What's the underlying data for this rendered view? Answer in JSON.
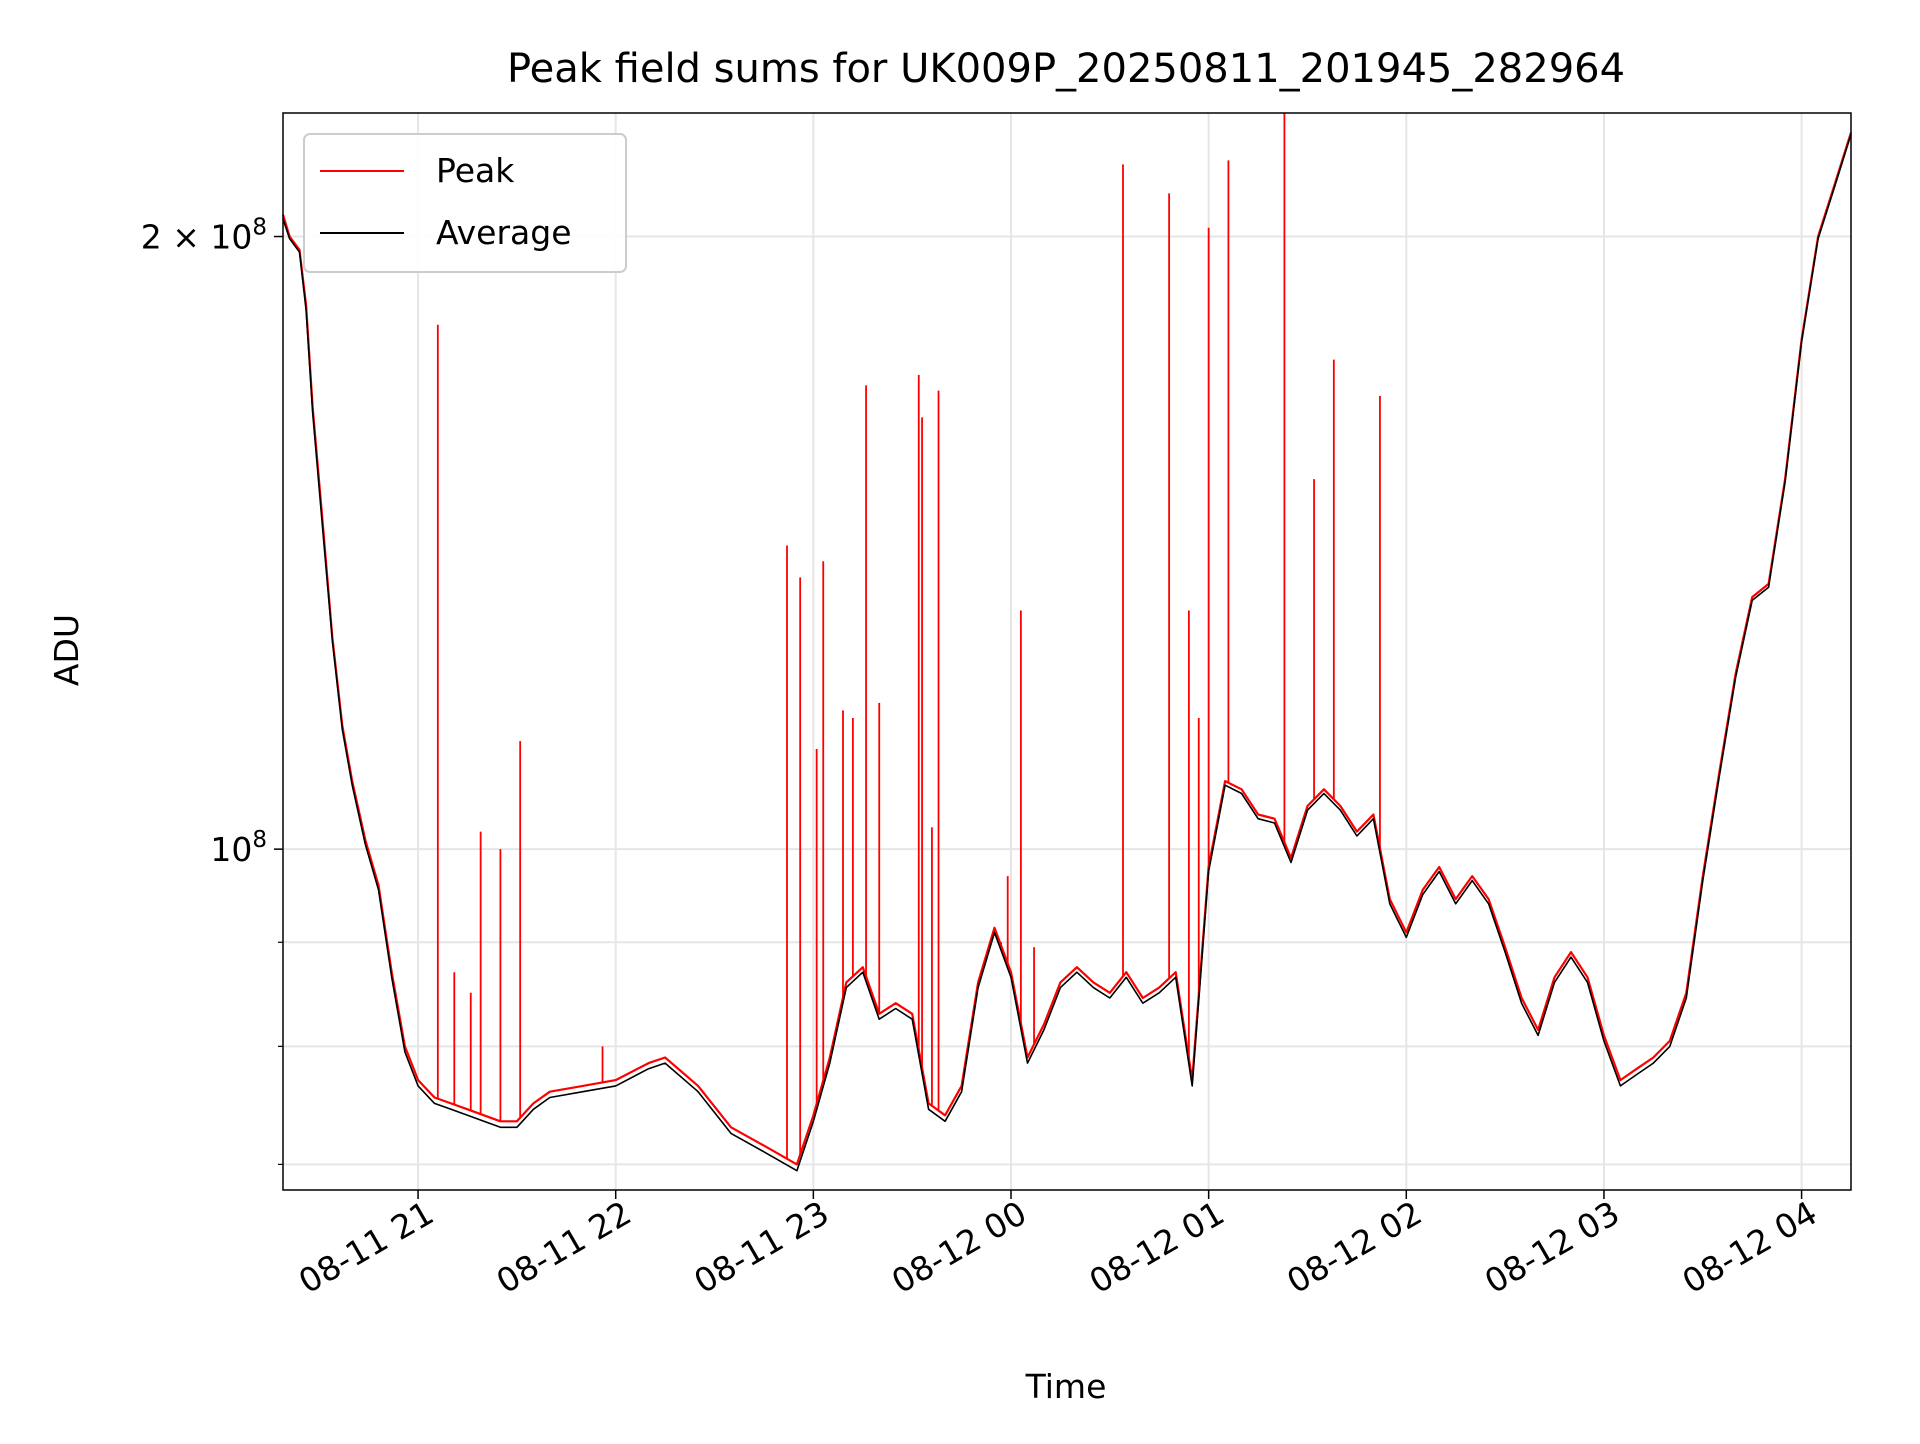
{
  "chart_data": {
    "type": "line",
    "title": "Peak field sums for UK009P_20250811_201945_282964",
    "xlabel": "Time",
    "ylabel": "ADU",
    "x_ticks": [
      "08-11 21",
      "08-11 22",
      "08-11 23",
      "08-12 00",
      "08-12 01",
      "08-12 02",
      "08-12 03",
      "08-12 04"
    ],
    "y_ticks": [
      {
        "value": 100000000,
        "label": "10^8"
      },
      {
        "value": 200000000,
        "label": "2 × 10^8"
      }
    ],
    "y_scale": "log",
    "xlim": [
      "2025-08-11 20:19",
      "2025-08-12 04:15"
    ],
    "ylim": [
      68000000,
      230000000
    ],
    "grid": true,
    "legend_position": "top-left",
    "series": [
      {
        "name": "Peak",
        "color": "#ff0000",
        "x": [
          "2025-08-11 20:19",
          "2025-08-11 20:21",
          "2025-08-11 20:24",
          "2025-08-11 20:26",
          "2025-08-11 20:28",
          "2025-08-11 20:31",
          "2025-08-11 20:34",
          "2025-08-11 20:37",
          "2025-08-11 20:40",
          "2025-08-11 20:44",
          "2025-08-11 20:48",
          "2025-08-11 20:52",
          "2025-08-11 20:56",
          "2025-08-11 21:00",
          "2025-08-11 21:05",
          "2025-08-11 21:10",
          "2025-08-11 21:15",
          "2025-08-11 21:20",
          "2025-08-11 21:25",
          "2025-08-11 21:30",
          "2025-08-11 21:35",
          "2025-08-11 21:40",
          "2025-08-11 21:50",
          "2025-08-11 22:00",
          "2025-08-11 22:10",
          "2025-08-11 22:15",
          "2025-08-11 22:25",
          "2025-08-11 22:35",
          "2025-08-11 22:45",
          "2025-08-11 22:55",
          "2025-08-11 23:00",
          "2025-08-11 23:05",
          "2025-08-11 23:10",
          "2025-08-11 23:15",
          "2025-08-11 23:20",
          "2025-08-11 23:25",
          "2025-08-11 23:30",
          "2025-08-11 23:35",
          "2025-08-11 23:40",
          "2025-08-11 23:45",
          "2025-08-11 23:50",
          "2025-08-11 23:55",
          "2025-08-12 00:00",
          "2025-08-12 00:05",
          "2025-08-12 00:10",
          "2025-08-12 00:15",
          "2025-08-12 00:20",
          "2025-08-12 00:25",
          "2025-08-12 00:30",
          "2025-08-12 00:35",
          "2025-08-12 00:40",
          "2025-08-12 00:45",
          "2025-08-12 00:50",
          "2025-08-12 00:55",
          "2025-08-12 01:00",
          "2025-08-12 01:05",
          "2025-08-12 01:10",
          "2025-08-12 01:15",
          "2025-08-12 01:20",
          "2025-08-12 01:25",
          "2025-08-12 01:30",
          "2025-08-12 01:35",
          "2025-08-12 01:40",
          "2025-08-12 01:45",
          "2025-08-12 01:50",
          "2025-08-12 01:55",
          "2025-08-12 02:00",
          "2025-08-12 02:05",
          "2025-08-12 02:10",
          "2025-08-12 02:15",
          "2025-08-12 02:20",
          "2025-08-12 02:25",
          "2025-08-12 02:30",
          "2025-08-12 02:35",
          "2025-08-12 02:40",
          "2025-08-12 02:45",
          "2025-08-12 02:50",
          "2025-08-12 02:55",
          "2025-08-12 03:00",
          "2025-08-12 03:05",
          "2025-08-12 03:10",
          "2025-08-12 03:15",
          "2025-08-12 03:20",
          "2025-08-12 03:25",
          "2025-08-12 03:30",
          "2025-08-12 03:35",
          "2025-08-12 03:40",
          "2025-08-12 03:45",
          "2025-08-12 03:50",
          "2025-08-12 03:55",
          "2025-08-12 04:00",
          "2025-08-12 04:05",
          "2025-08-12 04:10",
          "2025-08-12 04:15"
        ],
        "y": [
          205000000,
          200000000,
          197000000,
          185000000,
          165000000,
          145000000,
          127000000,
          115000000,
          108000000,
          101000000,
          96000000,
          87000000,
          80000000,
          77000000,
          75500000,
          75000000,
          74500000,
          74000000,
          73500000,
          73500000,
          75000000,
          76000000,
          76500000,
          77000000,
          78500000,
          79000000,
          76500000,
          73000000,
          71500000,
          70000000,
          74000000,
          79000000,
          86000000,
          87500000,
          83000000,
          84000000,
          83000000,
          75000000,
          74000000,
          76500000,
          86000000,
          91500000,
          87000000,
          79000000,
          82000000,
          86000000,
          87500000,
          86000000,
          85000000,
          87000000,
          84500000,
          85500000,
          87000000,
          77000000,
          98000000,
          108000000,
          107000000,
          104000000,
          103500000,
          99000000,
          105000000,
          107000000,
          105000000,
          102000000,
          104000000,
          94500000,
          91000000,
          95500000,
          98000000,
          94500000,
          97000000,
          94500000,
          89500000,
          84500000,
          81500000,
          86500000,
          89000000,
          86500000,
          81000000,
          77000000,
          78000000,
          79000000,
          80500000,
          85000000,
          97000000,
          109000000,
          122000000,
          133000000,
          135000000,
          152000000,
          178000000,
          200000000,
          212000000,
          225000000
        ],
        "spikes": [
          {
            "x": "2025-08-11 21:06",
            "y": 181000000
          },
          {
            "x": "2025-08-11 21:11",
            "y": 87000000
          },
          {
            "x": "2025-08-11 21:16",
            "y": 85000000
          },
          {
            "x": "2025-08-11 21:19",
            "y": 102000000
          },
          {
            "x": "2025-08-11 21:25",
            "y": 100000000
          },
          {
            "x": "2025-08-11 21:31",
            "y": 113000000
          },
          {
            "x": "2025-08-11 21:56",
            "y": 80000000
          },
          {
            "x": "2025-08-11 22:52",
            "y": 141000000
          },
          {
            "x": "2025-08-11 22:56",
            "y": 136000000
          },
          {
            "x": "2025-08-11 23:01",
            "y": 112000000
          },
          {
            "x": "2025-08-11 23:03",
            "y": 138500000
          },
          {
            "x": "2025-08-11 23:09",
            "y": 117000000
          },
          {
            "x": "2025-08-11 23:12",
            "y": 116000000
          },
          {
            "x": "2025-08-11 23:16",
            "y": 169000000
          },
          {
            "x": "2025-08-11 23:20",
            "y": 118000000
          },
          {
            "x": "2025-08-11 23:32",
            "y": 171000000
          },
          {
            "x": "2025-08-11 23:33",
            "y": 163000000
          },
          {
            "x": "2025-08-11 23:36",
            "y": 102500000
          },
          {
            "x": "2025-08-11 23:38",
            "y": 168000000
          },
          {
            "x": "2025-08-11 23:57",
            "y": 90000000
          },
          {
            "x": "2025-08-11 23:59",
            "y": 97000000
          },
          {
            "x": "2025-08-12 00:03",
            "y": 131000000
          },
          {
            "x": "2025-08-12 00:07",
            "y": 89500000
          },
          {
            "x": "2025-08-12 00:34",
            "y": 217000000
          },
          {
            "x": "2025-08-12 00:48",
            "y": 210000000
          },
          {
            "x": "2025-08-12 00:54",
            "y": 131000000
          },
          {
            "x": "2025-08-12 00:57",
            "y": 116000000
          },
          {
            "x": "2025-08-12 01:00",
            "y": 202000000
          },
          {
            "x": "2025-08-12 01:06",
            "y": 218000000
          },
          {
            "x": "2025-08-12 01:23",
            "y": 230000000
          },
          {
            "x": "2025-08-12 01:32",
            "y": 152000000
          },
          {
            "x": "2025-08-12 01:38",
            "y": 174000000
          },
          {
            "x": "2025-08-12 01:52",
            "y": 167000000
          }
        ]
      },
      {
        "name": "Average",
        "color": "#000000",
        "x": [
          "2025-08-11 20:19",
          "2025-08-11 20:21",
          "2025-08-11 20:24",
          "2025-08-11 20:26",
          "2025-08-11 20:28",
          "2025-08-11 20:31",
          "2025-08-11 20:34",
          "2025-08-11 20:37",
          "2025-08-11 20:40",
          "2025-08-11 20:44",
          "2025-08-11 20:48",
          "2025-08-11 20:52",
          "2025-08-11 20:56",
          "2025-08-11 21:00",
          "2025-08-11 21:05",
          "2025-08-11 21:10",
          "2025-08-11 21:15",
          "2025-08-11 21:20",
          "2025-08-11 21:25",
          "2025-08-11 21:30",
          "2025-08-11 21:35",
          "2025-08-11 21:40",
          "2025-08-11 21:50",
          "2025-08-11 22:00",
          "2025-08-11 22:10",
          "2025-08-11 22:15",
          "2025-08-11 22:25",
          "2025-08-11 22:35",
          "2025-08-11 22:45",
          "2025-08-11 22:55",
          "2025-08-11 23:00",
          "2025-08-11 23:05",
          "2025-08-11 23:10",
          "2025-08-11 23:15",
          "2025-08-11 23:20",
          "2025-08-11 23:25",
          "2025-08-11 23:30",
          "2025-08-11 23:35",
          "2025-08-11 23:40",
          "2025-08-11 23:45",
          "2025-08-11 23:50",
          "2025-08-11 23:55",
          "2025-08-12 00:00",
          "2025-08-12 00:05",
          "2025-08-12 00:10",
          "2025-08-12 00:15",
          "2025-08-12 00:20",
          "2025-08-12 00:25",
          "2025-08-12 00:30",
          "2025-08-12 00:35",
          "2025-08-12 00:40",
          "2025-08-12 00:45",
          "2025-08-12 00:50",
          "2025-08-12 00:55",
          "2025-08-12 01:00",
          "2025-08-12 01:05",
          "2025-08-12 01:10",
          "2025-08-12 01:15",
          "2025-08-12 01:20",
          "2025-08-12 01:25",
          "2025-08-12 01:30",
          "2025-08-12 01:35",
          "2025-08-12 01:40",
          "2025-08-12 01:45",
          "2025-08-12 01:50",
          "2025-08-12 01:55",
          "2025-08-12 02:00",
          "2025-08-12 02:05",
          "2025-08-12 02:10",
          "2025-08-12 02:15",
          "2025-08-12 02:20",
          "2025-08-12 02:25",
          "2025-08-12 02:30",
          "2025-08-12 02:35",
          "2025-08-12 02:40",
          "2025-08-12 02:45",
          "2025-08-12 02:50",
          "2025-08-12 02:55",
          "2025-08-12 03:00",
          "2025-08-12 03:05",
          "2025-08-12 03:10",
          "2025-08-12 03:15",
          "2025-08-12 03:20",
          "2025-08-12 03:25",
          "2025-08-12 03:30",
          "2025-08-12 03:35",
          "2025-08-12 03:40",
          "2025-08-12 03:45",
          "2025-08-12 03:50",
          "2025-08-12 03:55",
          "2025-08-12 04:00",
          "2025-08-12 04:05",
          "2025-08-12 04:10",
          "2025-08-12 04:15"
        ],
        "y": [
          204000000,
          199500000,
          196500000,
          184000000,
          164000000,
          144000000,
          126500000,
          114500000,
          107500000,
          100500000,
          95500000,
          86500000,
          79500000,
          76500000,
          75000000,
          74500000,
          74000000,
          73500000,
          73000000,
          73000000,
          74500000,
          75500000,
          76000000,
          76500000,
          78000000,
          78500000,
          76000000,
          72500000,
          71000000,
          69500000,
          73500000,
          78500000,
          85500000,
          87000000,
          82500000,
          83500000,
          82500000,
          74500000,
          73500000,
          76000000,
          85500000,
          91000000,
          86500000,
          78500000,
          81500000,
          85500000,
          87000000,
          85500000,
          84500000,
          86500000,
          84000000,
          85000000,
          86500000,
          76500000,
          97500000,
          107500000,
          106500000,
          103500000,
          103000000,
          98500000,
          104500000,
          106500000,
          104500000,
          101500000,
          103500000,
          94000000,
          90500000,
          95000000,
          97500000,
          94000000,
          96500000,
          94000000,
          89000000,
          84000000,
          81000000,
          86000000,
          88500000,
          86000000,
          80500000,
          76500000,
          77500000,
          78500000,
          80000000,
          84500000,
          96500000,
          108500000,
          121500000,
          132500000,
          134500000,
          151500000,
          177500000,
          199500000,
          211500000,
          224500000
        ]
      }
    ]
  }
}
